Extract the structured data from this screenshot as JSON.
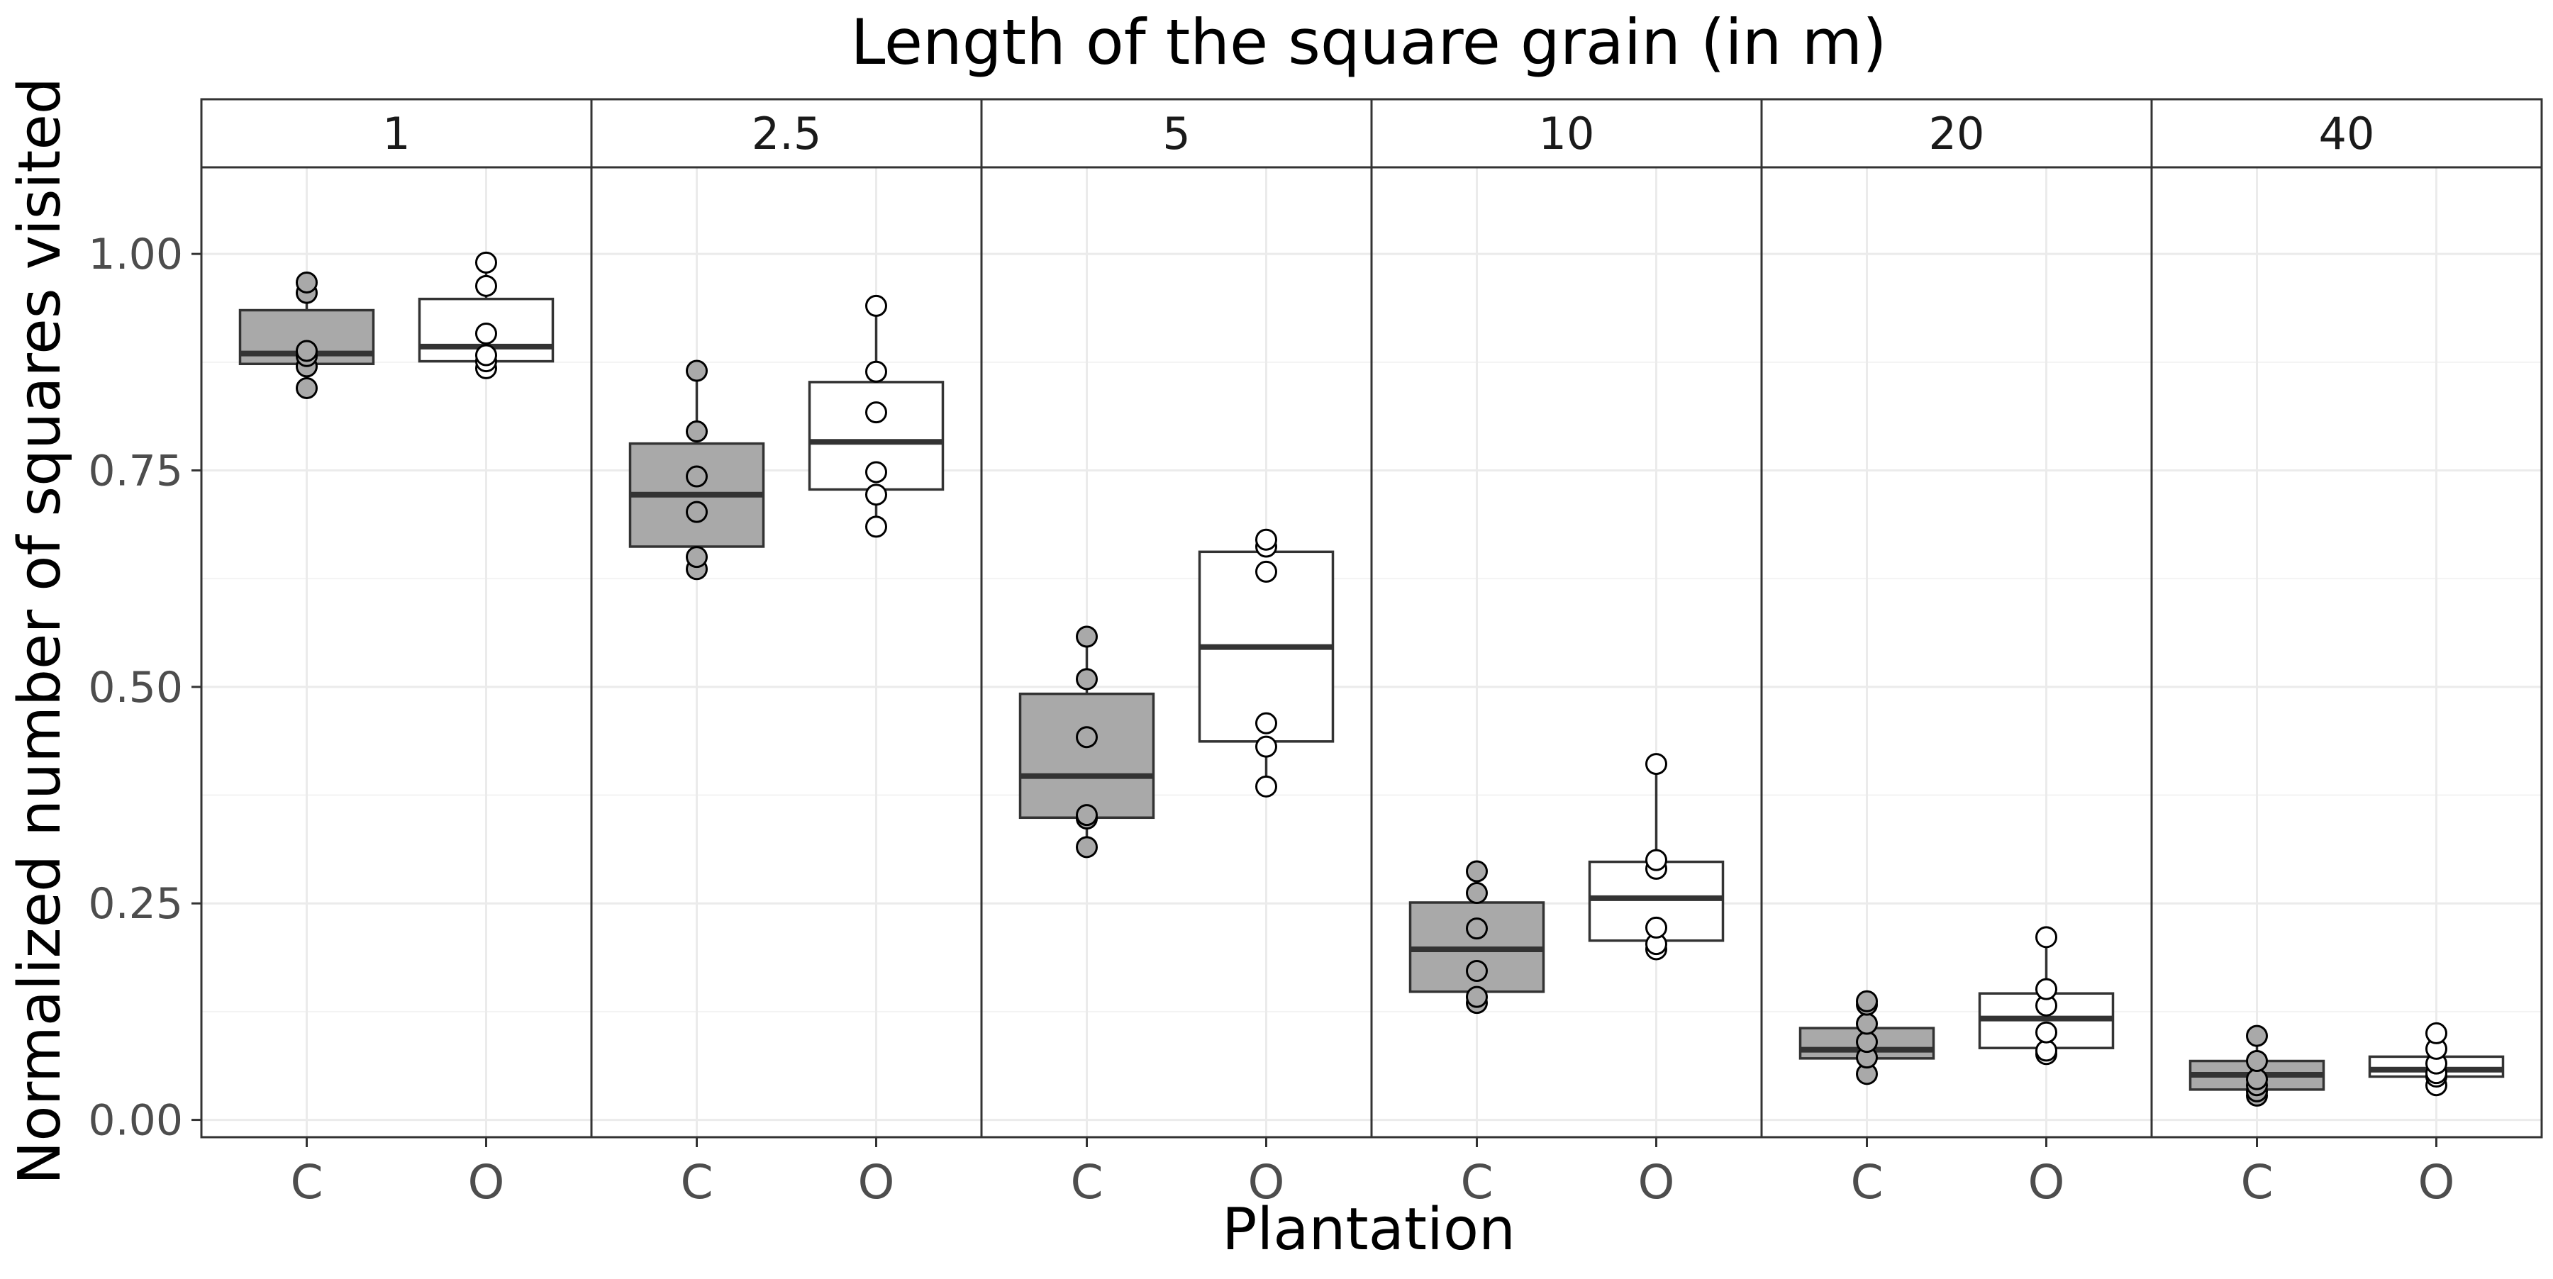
{
  "chart_data": {
    "type": "box",
    "title": "Length of the square grain (in m)",
    "xlabel": "Plantation",
    "ylabel": "Normalized number of squares visited",
    "ylim": [
      -0.02,
      1.1
    ],
    "y_ticks": [
      "0.00",
      "0.25",
      "0.50",
      "0.75",
      "1.00"
    ],
    "y_tick_values": [
      0,
      0.25,
      0.5,
      0.75,
      1.0
    ],
    "categories": [
      "C",
      "O"
    ],
    "grid": true,
    "fill_colors": {
      "C": "#a9a9a9",
      "O": "#ffffff"
    },
    "panels": [
      {
        "label": "1",
        "groups": [
          {
            "category": "C",
            "min": 0.845,
            "q1": 0.873,
            "median": 0.885,
            "q3": 0.935,
            "max": 0.967,
            "points": [
              0.845,
              0.87,
              0.882,
              0.888,
              0.955,
              0.967
            ]
          },
          {
            "category": "O",
            "min": 0.868,
            "q1": 0.876,
            "median": 0.893,
            "q3": 0.948,
            "max": 0.99,
            "points": [
              0.868,
              0.876,
              0.883,
              0.908,
              0.963,
              0.99
            ]
          }
        ]
      },
      {
        "label": "2.5",
        "groups": [
          {
            "category": "C",
            "min": 0.636,
            "q1": 0.662,
            "median": 0.722,
            "q3": 0.781,
            "max": 0.865,
            "points": [
              0.636,
              0.65,
              0.702,
              0.743,
              0.795,
              0.865
            ]
          },
          {
            "category": "O",
            "min": 0.685,
            "q1": 0.728,
            "median": 0.783,
            "q3": 0.852,
            "max": 0.94,
            "points": [
              0.685,
              0.722,
              0.748,
              0.817,
              0.864,
              0.94
            ]
          }
        ]
      },
      {
        "label": "5",
        "groups": [
          {
            "category": "C",
            "min": 0.315,
            "q1": 0.349,
            "median": 0.397,
            "q3": 0.492,
            "max": 0.558,
            "points": [
              0.315,
              0.348,
              0.352,
              0.442,
              0.509,
              0.558
            ]
          },
          {
            "category": "O",
            "min": 0.385,
            "q1": 0.437,
            "median": 0.546,
            "q3": 0.656,
            "max": 0.67,
            "points": [
              0.385,
              0.431,
              0.458,
              0.633,
              0.662,
              0.67
            ]
          }
        ]
      },
      {
        "label": "10",
        "groups": [
          {
            "category": "C",
            "min": 0.135,
            "q1": 0.148,
            "median": 0.197,
            "q3": 0.251,
            "max": 0.287,
            "points": [
              0.135,
              0.142,
              0.172,
              0.221,
              0.262,
              0.287
            ]
          },
          {
            "category": "O",
            "min": 0.197,
            "q1": 0.207,
            "median": 0.256,
            "q3": 0.298,
            "max": 0.411,
            "points": [
              0.197,
              0.203,
              0.222,
              0.29,
              0.3,
              0.411
            ]
          }
        ]
      },
      {
        "label": "20",
        "groups": [
          {
            "category": "C",
            "min": 0.053,
            "q1": 0.071,
            "median": 0.081,
            "q3": 0.106,
            "max": 0.137,
            "points": [
              0.053,
              0.072,
              0.09,
              0.111,
              0.133,
              0.137
            ]
          },
          {
            "category": "O",
            "min": 0.076,
            "q1": 0.083,
            "median": 0.117,
            "q3": 0.146,
            "max": 0.211,
            "points": [
              0.076,
              0.08,
              0.101,
              0.132,
              0.151,
              0.211
            ]
          }
        ]
      },
      {
        "label": "40",
        "groups": [
          {
            "category": "C",
            "min": 0.028,
            "q1": 0.035,
            "median": 0.052,
            "q3": 0.068,
            "max": 0.097,
            "points": [
              0.028,
              0.033,
              0.04,
              0.047,
              0.068,
              0.097
            ]
          },
          {
            "category": "O",
            "min": 0.04,
            "q1": 0.05,
            "median": 0.058,
            "q3": 0.073,
            "max": 0.1,
            "points": [
              0.04,
              0.05,
              0.054,
              0.065,
              0.082,
              0.1
            ]
          }
        ]
      }
    ]
  }
}
